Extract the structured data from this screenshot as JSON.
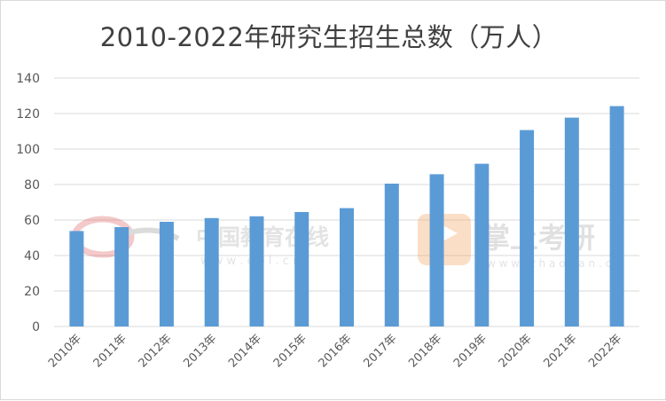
{
  "chart_data": {
    "type": "bar",
    "title": "2010-2022年研究生招生总数（万人）",
    "categories": [
      "2010年",
      "2011年",
      "2012年",
      "2013年",
      "2014年",
      "2015年",
      "2016年",
      "2017年",
      "2018年",
      "2019年",
      "2020年",
      "2021年",
      "2022年"
    ],
    "values": [
      53.8,
      56.0,
      59.0,
      61.1,
      62.1,
      64.5,
      66.7,
      80.5,
      85.8,
      91.7,
      110.7,
      117.7,
      124.2
    ],
    "ylim": [
      0,
      140
    ],
    "yticks": [
      0,
      20,
      40,
      60,
      80,
      100,
      120,
      140
    ],
    "grid": true,
    "bar_color": "#5b9bd5"
  },
  "watermarks": {
    "left_brand": "中国教育在线",
    "left_url": "w w w . e o l . c n",
    "right_brand": "掌上考研",
    "right_url": "w w w . z h a o y a n . c n"
  }
}
